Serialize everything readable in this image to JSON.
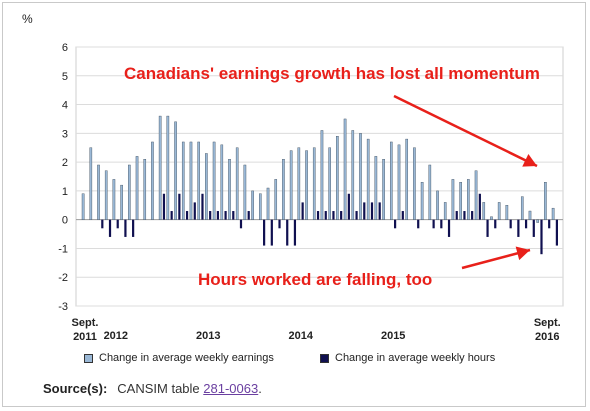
{
  "chart_data": {
    "type": "bar",
    "unit_label": "%",
    "ylim": [
      -3,
      6
    ],
    "yticks": [
      6,
      5,
      4,
      3,
      2,
      1,
      0,
      -1,
      -2,
      -3
    ],
    "x_tick_labels": [
      {
        "label": "Sept.\n2011",
        "index": 0
      },
      {
        "label": "2012",
        "index": 4
      },
      {
        "label": "2013",
        "index": 16
      },
      {
        "label": "2014",
        "index": 28
      },
      {
        "label": "2015",
        "index": 40
      },
      {
        "label": "Sept.\n2016",
        "index": 60
      }
    ],
    "series": [
      {
        "name": "Change in average weekly earnings",
        "color": "#9ab8d6",
        "values": [
          0.9,
          2.5,
          1.9,
          1.7,
          1.4,
          1.2,
          1.9,
          2.2,
          2.1,
          2.7,
          3.6,
          3.6,
          3.4,
          2.7,
          2.7,
          2.7,
          2.3,
          2.7,
          2.6,
          2.1,
          2.5,
          1.9,
          1.0,
          0.9,
          1.1,
          1.4,
          2.1,
          2.4,
          2.5,
          2.4,
          2.5,
          3.1,
          2.5,
          2.9,
          3.5,
          3.1,
          3.0,
          2.8,
          2.2,
          2.1,
          2.7,
          2.6,
          2.8,
          2.5,
          1.3,
          1.9,
          1.0,
          0.6,
          1.4,
          1.3,
          1.4,
          1.7,
          0.6,
          0.1,
          0.6,
          0.5,
          0.0,
          0.8,
          0.3,
          -0.1,
          1.3,
          0.4
        ]
      },
      {
        "name": "Change in average weekly hours",
        "color": "#101050",
        "values": [
          0.0,
          0.0,
          -0.3,
          -0.6,
          -0.3,
          -0.6,
          -0.6,
          0.0,
          0.0,
          0.0,
          0.9,
          0.3,
          0.9,
          0.3,
          0.6,
          0.9,
          0.3,
          0.3,
          0.3,
          0.3,
          -0.3,
          0.3,
          0.0,
          -0.9,
          -0.9,
          -0.3,
          -0.9,
          -0.9,
          0.6,
          0.0,
          0.3,
          0.3,
          0.3,
          0.3,
          0.9,
          0.3,
          0.6,
          0.6,
          0.6,
          0.0,
          -0.3,
          0.3,
          0.0,
          -0.3,
          0.0,
          -0.3,
          -0.3,
          -0.6,
          0.3,
          0.3,
          0.3,
          0.9,
          -0.6,
          -0.3,
          0.0,
          -0.3,
          -0.6,
          -0.3,
          -0.6,
          -1.2,
          -0.3,
          -0.9
        ]
      }
    ],
    "annotations": [
      "Canadians' earnings growth has lost all momentum",
      "Hours worked are falling, too"
    ],
    "annotation_color": "#e8201a"
  },
  "source": {
    "label": "Source(s):",
    "text_before": "CANSIM table ",
    "link_text": "281-0063",
    "text_after": "."
  }
}
